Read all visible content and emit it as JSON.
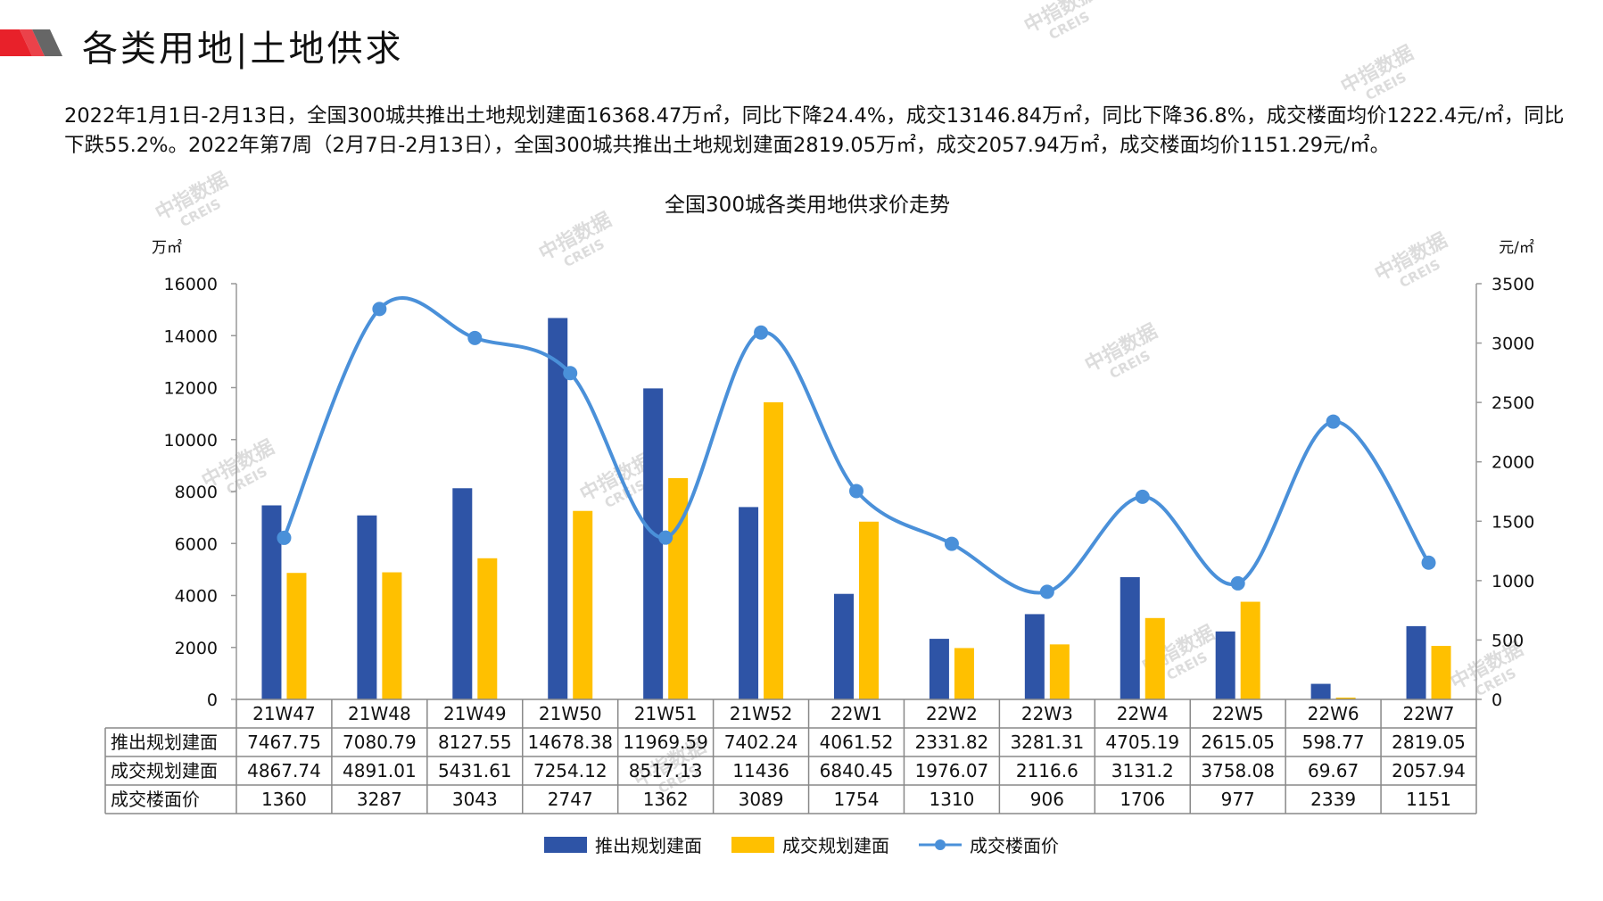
{
  "header": {
    "title": "各类用地|土地供求"
  },
  "summary_text": "2022年1月1日-2月13日，全国300城共推出土地规划建面16368.47万㎡，同比下降24.4%，成交13146.84万㎡，同比下降36.8%，成交楼面均价1222.4元/㎡，同比下跌55.2%。2022年第7周（2月7日-2月13日），全国300城共推出土地规划建面2819.05万㎡，成交2057.94万㎡，成交楼面均价1151.29元/㎡。",
  "watermark": {
    "cn": "中指数据",
    "en": "CREIS"
  },
  "colors": {
    "supply": "#2E54A6",
    "deal": "#FFC000",
    "price": "#4A90D9",
    "brand_red": "#E8212A"
  },
  "chart_data": {
    "type": "bar",
    "title": "全国300城各类用地供求价走势",
    "y_left_unit": "万㎡",
    "y_right_unit": "元/㎡",
    "ylim_left": [
      0,
      16000
    ],
    "ylim_right": [
      0,
      3500
    ],
    "y_left_ticks": [
      0,
      2000,
      4000,
      6000,
      8000,
      10000,
      12000,
      14000,
      16000
    ],
    "y_right_ticks": [
      0,
      500,
      1000,
      1500,
      2000,
      2500,
      3000,
      3500
    ],
    "categories": [
      "21W47",
      "21W48",
      "21W49",
      "21W50",
      "21W51",
      "21W52",
      "22W1",
      "22W2",
      "22W3",
      "22W4",
      "22W5",
      "22W6",
      "22W7"
    ],
    "series": [
      {
        "name": "推出规划建面",
        "type": "bar",
        "axis": "left",
        "values": [
          7467.75,
          7080.79,
          8127.55,
          14678.38,
          11969.59,
          7402.24,
          4061.52,
          2331.82,
          3281.31,
          4705.19,
          2615.05,
          598.77,
          2819.05
        ],
        "labels": [
          "7467.75",
          "7080.79",
          "8127.55",
          "14678.38",
          "11969.59",
          "7402.24",
          "4061.52",
          "2331.82",
          "3281.31",
          "4705.19",
          "2615.05",
          "598.77",
          "2819.05"
        ]
      },
      {
        "name": "成交规划建面",
        "type": "bar",
        "axis": "left",
        "values": [
          4867.74,
          4891.01,
          5431.61,
          7254.12,
          8517.13,
          11436,
          6840.45,
          1976.07,
          2116.6,
          3131.2,
          3758.08,
          69.67,
          2057.94
        ],
        "labels": [
          "4867.74",
          "4891.01",
          "5431.61",
          "7254.12",
          "8517.13",
          "11436",
          "6840.45",
          "1976.07",
          "2116.6",
          "3131.2",
          "3758.08",
          "69.67",
          "2057.94"
        ]
      },
      {
        "name": "成交楼面价",
        "type": "line",
        "axis": "right",
        "values": [
          1360,
          3287,
          3043,
          2747,
          1362,
          3089,
          1754,
          1310,
          906,
          1706,
          977,
          2339,
          1151
        ],
        "labels": [
          "1360",
          "3287",
          "3043",
          "2747",
          "1362",
          "3089",
          "1754",
          "1310",
          "906",
          "1706",
          "977",
          "2339",
          "1151"
        ]
      }
    ],
    "legend": "bottom",
    "grid": false,
    "data_table": true
  }
}
